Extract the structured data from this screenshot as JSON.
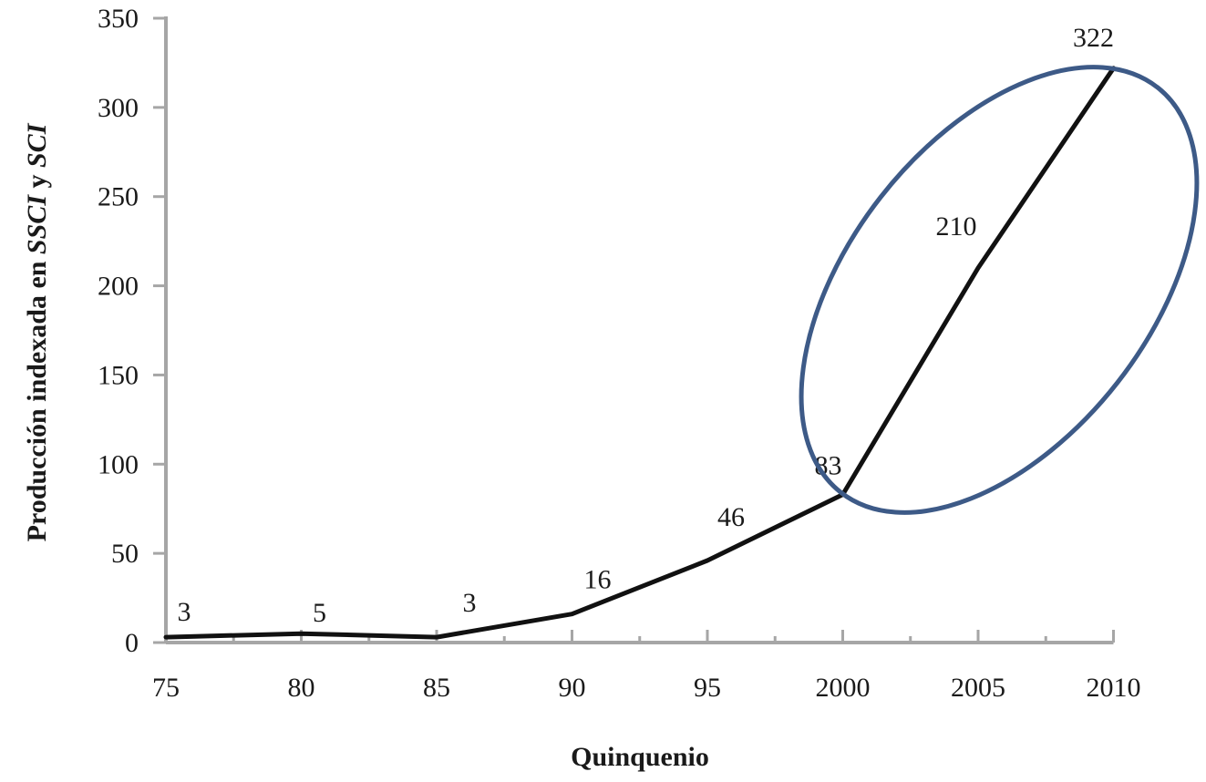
{
  "chart_data": {
    "type": "line",
    "x": [
      "75",
      "80",
      "85",
      "90",
      "95",
      "2000",
      "2005",
      "2010"
    ],
    "series": [
      {
        "values": [
          3,
          5,
          3,
          16,
          46,
          83,
          210,
          322
        ]
      }
    ],
    "data_labels": [
      "3",
      "5",
      "3",
      "16",
      "46",
      "83",
      "210",
      "322"
    ],
    "yticks": [
      "0",
      "50",
      "100",
      "150",
      "200",
      "250",
      "300",
      "350"
    ],
    "ylim": [
      0,
      350
    ],
    "xlabel": "Quinquenio",
    "ylabel": {
      "part1": "Producción indexada en ",
      "part2": "SSCI",
      "part3": " y ",
      "part4": "SCI"
    },
    "grid": false,
    "legend": "none",
    "colors": {
      "axis": "#a6a6a6",
      "line": "#111111",
      "highlight_ellipse": "#3d5a87"
    },
    "annotation": {
      "kind": "ellipse-highlight",
      "covers_x": [
        "2000",
        "2005",
        "2010"
      ]
    }
  }
}
